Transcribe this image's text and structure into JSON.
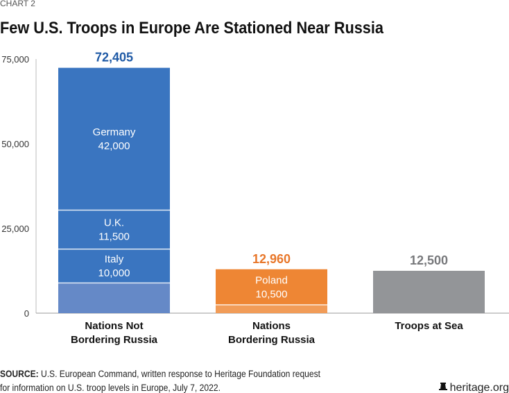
{
  "chart_label": "CHART 2",
  "chart_data": {
    "type": "bar",
    "stacked": true,
    "title": "Few U.S. Troops in Europe Are Stationed Near Russia",
    "xlabel": "",
    "ylabel": "",
    "ylim": [
      0,
      75000
    ],
    "yticks": [
      0,
      25000,
      50000,
      75000
    ],
    "ytick_labels": [
      "0",
      "25,000",
      "50,000",
      "75,000"
    ],
    "grid": false,
    "categories": [
      "Nations Not Bordering Russia",
      "Nations Bordering Russia",
      "Troops at Sea"
    ],
    "category_lines": [
      [
        "Nations Not",
        "Bordering Russia"
      ],
      [
        "Nations",
        "Bordering Russia"
      ],
      [
        "Troops at Sea"
      ]
    ],
    "totals": [
      72405,
      12960,
      12500
    ],
    "total_labels": [
      "72,405",
      "12,960",
      "12,500"
    ],
    "total_colors": [
      "#1f5aa6",
      "#e8772a",
      "#77787b"
    ],
    "bars": [
      {
        "segments": [
          {
            "name": "",
            "value": 8905,
            "label": "",
            "color": "#6589c7"
          },
          {
            "name": "Italy",
            "value": 10000,
            "label": "10,000",
            "color": "#3a75c0"
          },
          {
            "name": "U.K.",
            "value": 11500,
            "label": "11,500",
            "color": "#3a75c0"
          },
          {
            "name": "Germany",
            "value": 42000,
            "label": "42,000",
            "color": "#3a75c0"
          }
        ]
      },
      {
        "segments": [
          {
            "name": "",
            "value": 2460,
            "label": "",
            "color": "#f19c58"
          },
          {
            "name": "Poland",
            "value": 10500,
            "label": "10,500",
            "color": "#ee8634"
          }
        ]
      },
      {
        "segments": [
          {
            "name": "",
            "value": 12500,
            "label": "",
            "color": "#939598"
          }
        ]
      }
    ]
  },
  "footer": {
    "source_label": "SOURCE:",
    "source_line1": " U.S. European Command, written response to Heritage Foundation request",
    "source_line2": "for information on U.S. troop levels in Europe, July 7, 2022.",
    "brand": "heritage.org",
    "brand_icon": "liberty-bell-icon"
  }
}
